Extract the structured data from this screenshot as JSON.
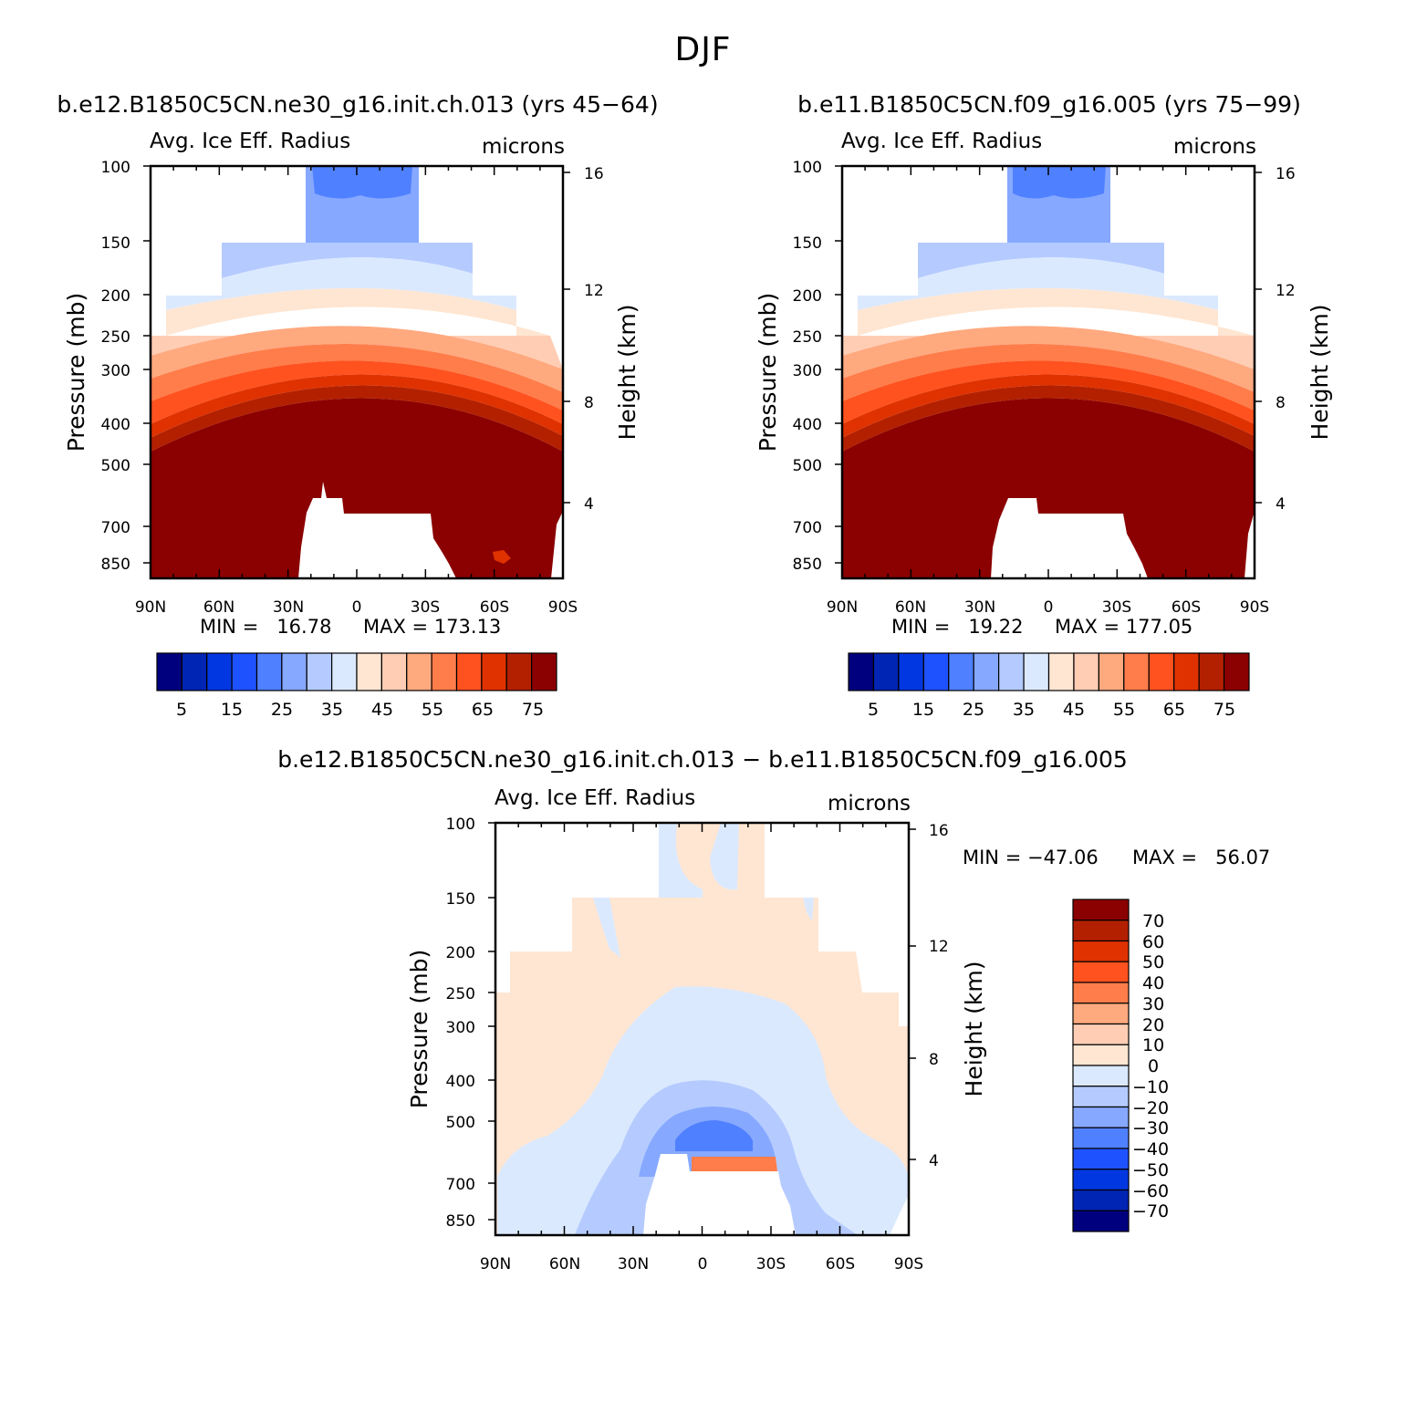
{
  "figure": {
    "title": "DJF",
    "colors": {
      "abs_scale": [
        "#00007f",
        "#0024b3",
        "#0037e0",
        "#1f52ff",
        "#4f80ff",
        "#86a8ff",
        "#b5cbff",
        "#dbe9ff",
        "#ffe6d2",
        "#ffcdb4",
        "#ffa97f",
        "#ff7d4a",
        "#ff521f",
        "#e03200",
        "#b32000",
        "#8b0000"
      ],
      "diff_scale": [
        "#00007f",
        "#0024b3",
        "#0037e0",
        "#1f52ff",
        "#4f80ff",
        "#86a8ff",
        "#b5cbff",
        "#dbe9ff",
        "#ffe6d2",
        "#ffcdb4",
        "#ffa97f",
        "#ff7d4a",
        "#ff521f",
        "#e03200",
        "#b32000",
        "#8b0000"
      ]
    }
  },
  "chart_data": [
    {
      "type": "heatmap",
      "title": "b.e12.B1850C5CN.ne30_g16.init.ch.013 (yrs 45-64)",
      "variable_label": "Avg. Ice Eff. Radius",
      "units_label": "microns",
      "ylabel": "Pressure (mb)",
      "ylabel_right": "Height (km)",
      "x_ticks": [
        "90N",
        "60N",
        "30N",
        "0",
        "30S",
        "60S",
        "90S"
      ],
      "y_ticks": [
        "100",
        "150",
        "200",
        "250",
        "300",
        "400",
        "500",
        "700",
        "850"
      ],
      "y_right_ticks": [
        "16",
        "12",
        "8",
        "4"
      ],
      "min_label": "MIN =   16.78",
      "max_label": "MAX = 173.13",
      "colorbar_labels": [
        "5",
        "15",
        "25",
        "35",
        "45",
        "55",
        "65",
        "75"
      ],
      "colorbar_levels": [
        5,
        10,
        15,
        20,
        25,
        30,
        35,
        40,
        45,
        50,
        55,
        60,
        65,
        70,
        75
      ]
    },
    {
      "type": "heatmap",
      "title": "b.e11.B1850C5CN.f09_g16.005 (yrs 75-99)",
      "variable_label": "Avg. Ice Eff. Radius",
      "units_label": "microns",
      "ylabel": "Pressure (mb)",
      "ylabel_right": "Height (km)",
      "x_ticks": [
        "90N",
        "60N",
        "30N",
        "0",
        "30S",
        "60S",
        "90S"
      ],
      "y_ticks": [
        "100",
        "150",
        "200",
        "250",
        "300",
        "400",
        "500",
        "700",
        "850"
      ],
      "y_right_ticks": [
        "16",
        "12",
        "8",
        "4"
      ],
      "min_label": "MIN =   19.22",
      "max_label": "MAX = 177.05",
      "colorbar_labels": [
        "5",
        "15",
        "25",
        "35",
        "45",
        "55",
        "65",
        "75"
      ],
      "colorbar_levels": [
        5,
        10,
        15,
        20,
        25,
        30,
        35,
        40,
        45,
        50,
        55,
        60,
        65,
        70,
        75
      ]
    },
    {
      "type": "heatmap",
      "title": "b.e12.B1850C5CN.ne30_g16.init.ch.013 - b.e11.B1850C5CN.f09_g16.005",
      "variable_label": "Avg. Ice Eff. Radius",
      "units_label": "microns",
      "ylabel": "Pressure (mb)",
      "ylabel_right": "Height (km)",
      "x_ticks": [
        "90N",
        "60N",
        "30N",
        "0",
        "30S",
        "60S",
        "90S"
      ],
      "y_ticks": [
        "100",
        "150",
        "200",
        "250",
        "300",
        "400",
        "500",
        "700",
        "850"
      ],
      "y_right_ticks": [
        "16",
        "12",
        "8",
        "4"
      ],
      "min_label": "MIN = -47.06",
      "max_label": "MAX =   56.07",
      "colorbar_labels": [
        "70",
        "60",
        "50",
        "40",
        "30",
        "20",
        "10",
        "0",
        "-10",
        "-20",
        "-30",
        "-40",
        "-50",
        "-60",
        "-70"
      ],
      "colorbar_levels": [
        70,
        60,
        50,
        40,
        30,
        20,
        10,
        0,
        -10,
        -20,
        -30,
        -40,
        -50,
        -60,
        -70
      ]
    }
  ]
}
